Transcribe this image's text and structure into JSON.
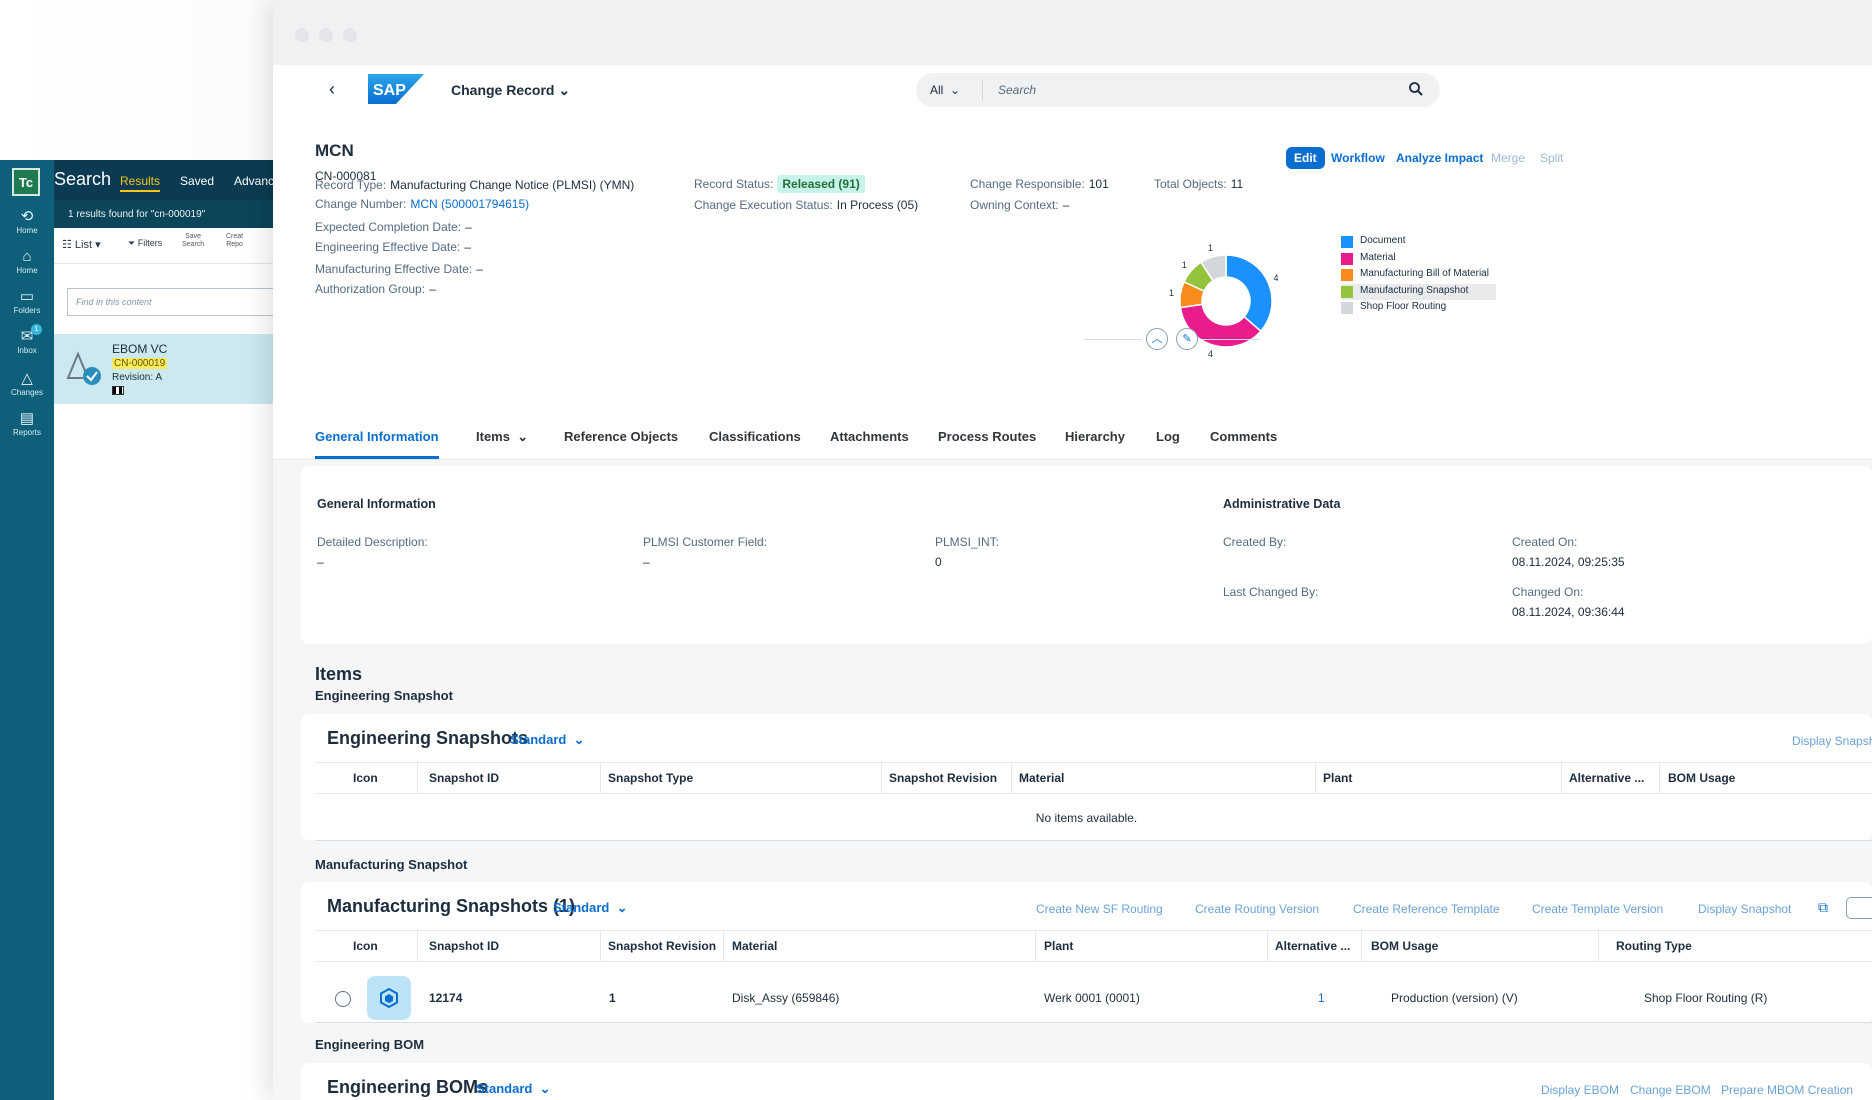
{
  "teamcenter": {
    "logo": "Tc",
    "title": "Search",
    "tabs": [
      "Results",
      "Saved",
      "Advanc"
    ],
    "results_text": "1 results found for \"cn-000019\"",
    "rail": [
      {
        "icon": "home-history-icon",
        "label": "Home"
      },
      {
        "icon": "home-icon",
        "label": "Home"
      },
      {
        "icon": "folder-icon",
        "label": "Folders"
      },
      {
        "icon": "inbox-icon",
        "label": "Inbox",
        "badge": "1"
      },
      {
        "icon": "changes-icon",
        "label": "Changes"
      },
      {
        "icon": "reports-icon",
        "label": "Reports"
      }
    ],
    "toolbar": {
      "list_label": "List",
      "filters_label": "Filters",
      "save_search_label": "Save\nSearch",
      "create_label": "Creat\nRepo"
    },
    "find_placeholder": "Find in this content",
    "result_card": {
      "title": "EBOM VC",
      "id": "CN-000019",
      "revision": "Revision:  A"
    }
  },
  "shell": {
    "back_icon": "chevron-left-icon",
    "app_title": "Change Record",
    "search_scope": "All",
    "search_placeholder": "Search"
  },
  "header": {
    "title": "MCN",
    "subtitle": "CN-000081",
    "actions": {
      "edit": "Edit",
      "workflow": "Workflow",
      "analyze": "Analyze Impact",
      "merge": "Merge",
      "split": "Split"
    },
    "attributes": {
      "record_type_label": "Record Type:",
      "record_type": "Manufacturing Change Notice (PLMSI) (YMN)",
      "change_number_label": "Change Number:",
      "change_number": "MCN (500001794615)",
      "expected_completion_label": "Expected Completion Date:",
      "expected_completion": "–",
      "eng_effective_label": "Engineering Effective Date:",
      "eng_effective": "–",
      "mfg_effective_label": "Manufacturing Effective Date:",
      "mfg_effective": "–",
      "auth_group_label": "Authorization Group:",
      "auth_group": "–",
      "record_status_label": "Record Status:",
      "record_status": "Released (91)",
      "exec_status_label": "Change Execution Status:",
      "exec_status": "In Process (05)",
      "change_resp_label": "Change Responsible:",
      "change_resp": "101",
      "owning_context_label": "Owning Context:",
      "owning_context": "–",
      "total_objects_label": "Total Objects:",
      "total_objects": "11"
    }
  },
  "chart_data": {
    "type": "pie",
    "categories": [
      "Document",
      "Material",
      "Manufacturing Bill of Material",
      "Manufacturing Snapshot",
      "Shop Floor Routing"
    ],
    "values": [
      4,
      4,
      1,
      1,
      1
    ],
    "colors": [
      "#1b90ff",
      "#ea1b8c",
      "#f78c1a",
      "#94c43b",
      "#d3d6da"
    ],
    "donut": true,
    "highlighted": "Manufacturing Snapshot",
    "legend_position": "right"
  },
  "tabs": [
    "General Information",
    "Items",
    "Reference Objects",
    "Classifications",
    "Attachments",
    "Process Routes",
    "Hierarchy",
    "Log",
    "Comments"
  ],
  "general_info": {
    "heading": "General Information",
    "detailed_desc_label": "Detailed Description:",
    "detailed_desc": "–",
    "customer_field_label": "PLMSI Customer Field:",
    "customer_field": "–",
    "plmsi_int_label": "PLMSI_INT:",
    "plmsi_int": "0"
  },
  "admin_data": {
    "heading": "Administrative Data",
    "created_by_label": "Created By:",
    "created_on_label": "Created On:",
    "created_on": "08.11.2024, 09:25:35",
    "last_changed_by_label": "Last Changed By:",
    "changed_on_label": "Changed On:",
    "changed_on": "08.11.2024, 09:36:44"
  },
  "items": {
    "heading": "Items",
    "eng_snapshot_heading": "Engineering Snapshot",
    "eng_snapshots": {
      "title": "Engineering Snapshots",
      "variant": "Standard",
      "action": "Display Snapshot",
      "columns": [
        "Icon",
        "Snapshot ID",
        "Snapshot Type",
        "Snapshot Revision",
        "Material",
        "Plant",
        "Alternative ...",
        "BOM Usage"
      ],
      "empty_text": "No items available."
    },
    "mfg_snapshot_heading": "Manufacturing Snapshot",
    "mfg_snapshots": {
      "title": "Manufacturing Snapshots (1)",
      "variant": "Standard",
      "actions": [
        "Create New SF Routing",
        "Create Routing Version",
        "Create Reference Template",
        "Create Template Version",
        "Display Snapshot"
      ],
      "columns": [
        "Icon",
        "Snapshot ID",
        "Snapshot Revision",
        "Material",
        "Plant",
        "Alternative ...",
        "BOM Usage",
        "Routing Type"
      ],
      "rows": [
        {
          "snapshot_id": "12174",
          "revision": "1",
          "material": "Disk_Assy (659846)",
          "plant": "Werk 0001 (0001)",
          "alternative": "1",
          "bom_usage": "Production (version) (V)",
          "routing_type": "Shop Floor Routing (R)"
        }
      ]
    },
    "eng_bom_heading": "Engineering BOM",
    "eng_boms": {
      "title": "Engineering BOMs",
      "variant": "Standard",
      "actions": [
        "Display EBOM",
        "Change EBOM",
        "Prepare MBOM Creation"
      ]
    }
  }
}
